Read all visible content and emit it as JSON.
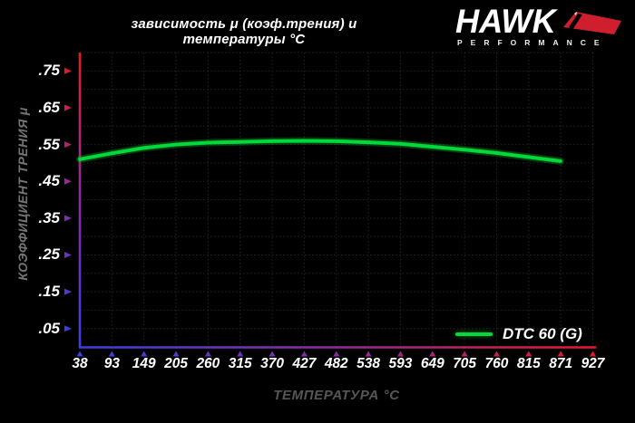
{
  "header": {
    "logo": {
      "brand": "HAWK",
      "subtitle": "PERFORMANCE"
    }
  },
  "chart_data": {
    "type": "line",
    "title": "зависимость μ (коэф.трения) и температуры °C",
    "xlabel": "ТЕМПЕРАТУРА °C",
    "ylabel": "КОЭФФИЦИЕНТ ТРЕНИЯ μ",
    "xlim": [
      38,
      927
    ],
    "ylim": [
      0,
      0.8
    ],
    "x_ticks": [
      38,
      93,
      149,
      205,
      260,
      315,
      370,
      427,
      482,
      538,
      593,
      649,
      705,
      760,
      815,
      871,
      927
    ],
    "y_ticks": [
      ".05",
      ".15",
      ".25",
      ".35",
      ".45",
      ".55",
      ".65",
      ".75"
    ],
    "grid": {
      "visible": true,
      "style": "dotted",
      "x_step_label": "every temperature tick",
      "y_step": 0.05
    },
    "legend": {
      "position": "lower-right"
    },
    "series": [
      {
        "name": "DTC 60 (G)",
        "color": "#00d93a",
        "x": [
          38,
          93,
          149,
          205,
          260,
          315,
          370,
          427,
          482,
          538,
          593,
          649,
          705,
          760,
          815,
          871
        ],
        "values": [
          0.51,
          0.526,
          0.541,
          0.55,
          0.555,
          0.557,
          0.559,
          0.56,
          0.559,
          0.556,
          0.552,
          0.544,
          0.536,
          0.527,
          0.516,
          0.505
        ]
      }
    ]
  },
  "colors": {
    "background": "#000000",
    "curve_green": "#00d93a",
    "axis_red": "#e8182b",
    "axis_purple": "#8c2ba6",
    "axis_blue": "#3c3ee2",
    "grid": "#242424",
    "tick_text": "#ffffff"
  }
}
